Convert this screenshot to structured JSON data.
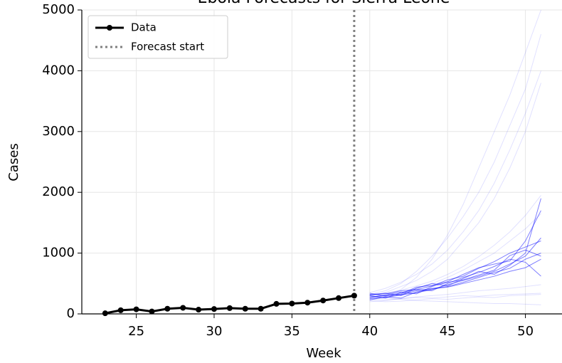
{
  "chart_data": {
    "type": "line",
    "title": "Ebola Forecasts for Sierra Leone",
    "x_label": "Week",
    "y_label": "Cases",
    "x": [
      23,
      24,
      25,
      26,
      27,
      28,
      29,
      30,
      31,
      32,
      33,
      34,
      35,
      36,
      37,
      38,
      39
    ],
    "series": [
      {
        "name": "Data",
        "color": "#000000",
        "values": [
          10,
          60,
          75,
          40,
          85,
          100,
          70,
          80,
          95,
          85,
          85,
          165,
          170,
          185,
          220,
          260,
          300
        ]
      }
    ],
    "forecast_start": 39,
    "forecast_start_label": "Forecast start",
    "forecast_start_color": "#808080",
    "forecast_x": [
      40,
      41,
      42,
      43,
      44,
      45,
      46,
      47,
      48,
      49,
      50,
      51
    ],
    "trajectory_color": "#0000ff",
    "trajectories_strong": [
      [
        280,
        300,
        320,
        380,
        420,
        450,
        520,
        600,
        680,
        750,
        900,
        1000
      ],
      [
        250,
        270,
        310,
        350,
        400,
        480,
        550,
        620,
        700,
        820,
        950,
        1250
      ],
      [
        320,
        340,
        300,
        420,
        500,
        460,
        580,
        700,
        650,
        800,
        1000,
        1900
      ],
      [
        300,
        260,
        350,
        400,
        380,
        500,
        600,
        680,
        780,
        900,
        850,
        620
      ],
      [
        270,
        310,
        360,
        330,
        450,
        520,
        560,
        640,
        720,
        960,
        1050,
        950
      ],
      [
        340,
        290,
        330,
        440,
        470,
        530,
        650,
        760,
        820,
        870,
        1200,
        1700
      ],
      [
        230,
        280,
        260,
        360,
        410,
        440,
        500,
        560,
        620,
        700,
        760,
        900
      ],
      [
        310,
        330,
        380,
        400,
        460,
        560,
        620,
        750,
        860,
        1000,
        1100,
        1200
      ]
    ],
    "trajectories_faint": [
      [
        250,
        300,
        400,
        600,
        900,
        1300,
        1800,
        2400,
        3000,
        3600,
        4300,
        5000
      ],
      [
        300,
        350,
        450,
        550,
        700,
        900,
        1200,
        1500,
        1900,
        2400,
        3000,
        3800
      ],
      [
        200,
        220,
        250,
        280,
        300,
        320,
        350,
        380,
        400,
        420,
        450,
        480
      ],
      [
        280,
        260,
        240,
        220,
        210,
        200,
        190,
        180,
        170,
        170,
        160,
        150
      ],
      [
        320,
        380,
        500,
        700,
        950,
        1250,
        1600,
        2000,
        2500,
        3100,
        3700,
        4600
      ],
      [
        260,
        300,
        350,
        420,
        500,
        600,
        720,
        860,
        1000,
        1200,
        1400,
        1650
      ],
      [
        240,
        230,
        250,
        270,
        260,
        280,
        300,
        290,
        310,
        320,
        330,
        340
      ],
      [
        350,
        420,
        520,
        650,
        820,
        1050,
        1350,
        1700,
        2150,
        2700,
        3300,
        4000
      ],
      [
        220,
        200,
        210,
        230,
        250,
        240,
        260,
        280,
        270,
        300,
        310,
        320
      ],
      [
        300,
        340,
        390,
        460,
        540,
        650,
        780,
        940,
        1130,
        1350,
        1620,
        1950
      ]
    ],
    "xlim": [
      21.5,
      52.35
    ],
    "ylim": [
      0,
      5000
    ],
    "xticks": [
      25,
      30,
      35,
      40,
      45,
      50
    ],
    "yticks": [
      0,
      1000,
      2000,
      3000,
      4000,
      5000
    ],
    "grid": true,
    "legend": "upper left"
  }
}
